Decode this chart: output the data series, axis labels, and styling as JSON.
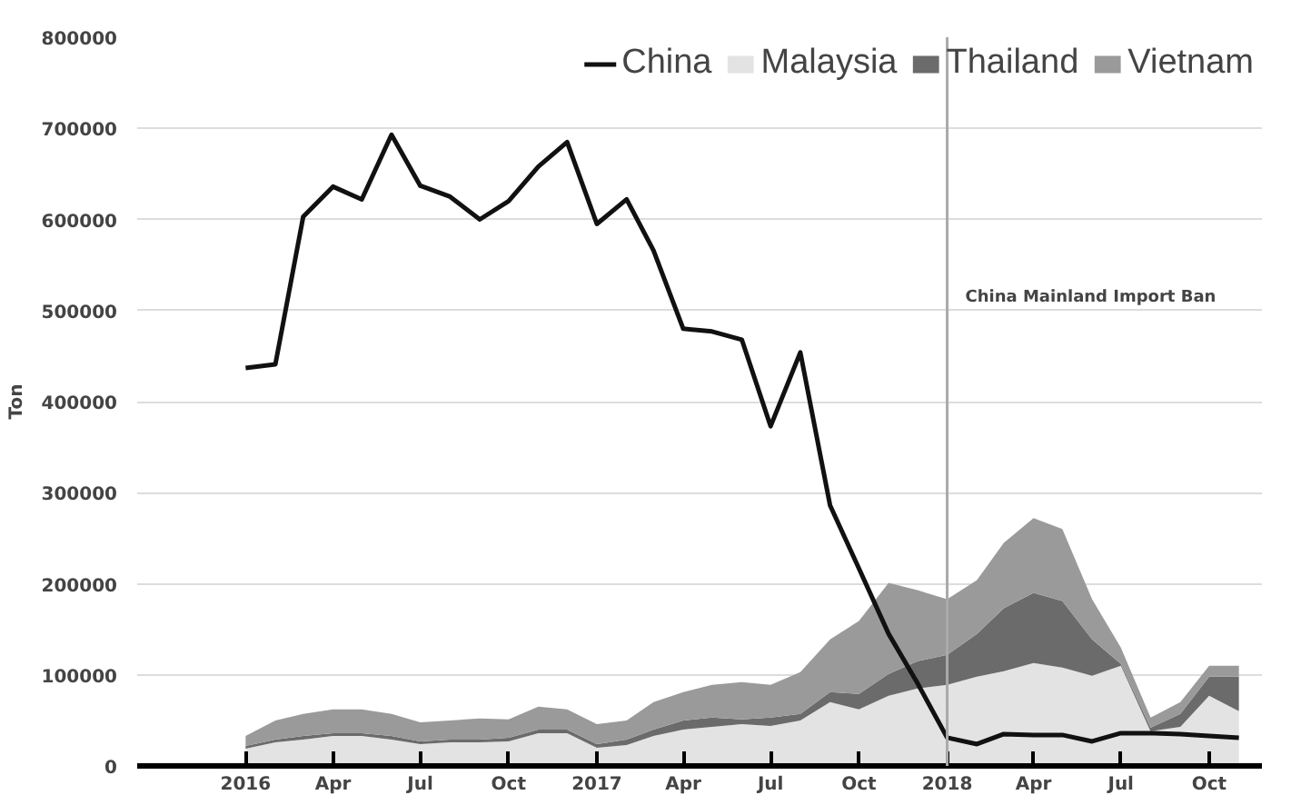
{
  "chart_data": {
    "type": "area",
    "stacked": true,
    "ylabel": "Ton",
    "x": [
      "2016-01",
      "2016-02",
      "2016-03",
      "2016-04",
      "2016-05",
      "2016-06",
      "2016-07",
      "2016-08",
      "2016-09",
      "2016-10",
      "2016-11",
      "2016-12",
      "2017-01",
      "2017-02",
      "2017-03",
      "2017-04",
      "2017-05",
      "2017-06",
      "2017-07",
      "2017-08",
      "2017-09",
      "2017-10",
      "2017-11",
      "2017-12",
      "2018-01",
      "2018-02",
      "2018-03",
      "2018-04",
      "2018-05",
      "2018-06",
      "2018-07",
      "2018-08",
      "2018-09",
      "2018-10",
      "2018-11"
    ],
    "series": [
      {
        "name": "China",
        "type": "line",
        "color": "#111111",
        "values": [
          437000,
          441000,
          603000,
          636000,
          622000,
          693000,
          637000,
          625000,
          600000,
          620000,
          658000,
          685000,
          595000,
          622000,
          566000,
          480000,
          477000,
          468000,
          373000,
          454000,
          286000,
          217000,
          145000,
          91000,
          31000,
          24000,
          35000,
          34000,
          34000,
          27000,
          36000,
          36000,
          35000,
          33000,
          31000
        ]
      },
      {
        "name": "Malaysia",
        "color": "#e3e3e3",
        "values": [
          19000,
          26000,
          29000,
          33000,
          33000,
          29000,
          24000,
          26000,
          26000,
          27000,
          36000,
          36000,
          20000,
          23000,
          33000,
          40000,
          43000,
          46000,
          44000,
          50000,
          70000,
          62000,
          77000,
          85000,
          89000,
          98000,
          104000,
          113000,
          108000,
          99000,
          110000,
          38000,
          43000,
          77000,
          60000
        ]
      },
      {
        "name": "Thailand",
        "color": "#6b6b6b",
        "values": [
          3000,
          3000,
          4000,
          3000,
          3000,
          4000,
          3000,
          3000,
          3000,
          4000,
          4000,
          4000,
          4000,
          6000,
          7000,
          10000,
          10000,
          5000,
          9000,
          7000,
          11000,
          17000,
          24000,
          30000,
          33000,
          47000,
          69000,
          77000,
          73000,
          40000,
          2000,
          4000,
          14000,
          21000,
          38000
        ]
      },
      {
        "name": "Vietnam",
        "color": "#9a9a9a",
        "values": [
          11000,
          21000,
          24000,
          26000,
          26000,
          24000,
          21000,
          21000,
          23000,
          20000,
          25000,
          22000,
          22000,
          21000,
          30000,
          31000,
          36000,
          41000,
          36000,
          46000,
          58000,
          80000,
          100000,
          78000,
          61000,
          59000,
          72000,
          82000,
          79000,
          44000,
          18000,
          11000,
          13000,
          12000,
          12000
        ]
      }
    ],
    "xlim": [
      "2015-09-10",
      "2018-11-25"
    ],
    "xticks": [
      {
        "value": "2016-01",
        "label": "2016"
      },
      {
        "value": "2016-04",
        "label": "Apr"
      },
      {
        "value": "2016-07",
        "label": "Jul"
      },
      {
        "value": "2016-10",
        "label": "Oct"
      },
      {
        "value": "2017-01",
        "label": "2017"
      },
      {
        "value": "2017-04",
        "label": "Apr"
      },
      {
        "value": "2017-07",
        "label": "Jul"
      },
      {
        "value": "2017-10",
        "label": "Oct"
      },
      {
        "value": "2018-01",
        "label": "2018"
      },
      {
        "value": "2018-04",
        "label": "Apr"
      },
      {
        "value": "2018-07",
        "label": "Jul"
      },
      {
        "value": "2018-10",
        "label": "Oct"
      }
    ],
    "ylim": [
      0,
      800000
    ],
    "yticks": [
      0,
      100000,
      200000,
      300000,
      400000,
      500000,
      600000,
      700000,
      800000
    ],
    "ref_lines": [
      {
        "axis": "x",
        "value": "2018-01",
        "label": "China Mainland Import Ban",
        "color": "#aaaaaa"
      }
    ],
    "grid": "y",
    "legend": "top right"
  }
}
